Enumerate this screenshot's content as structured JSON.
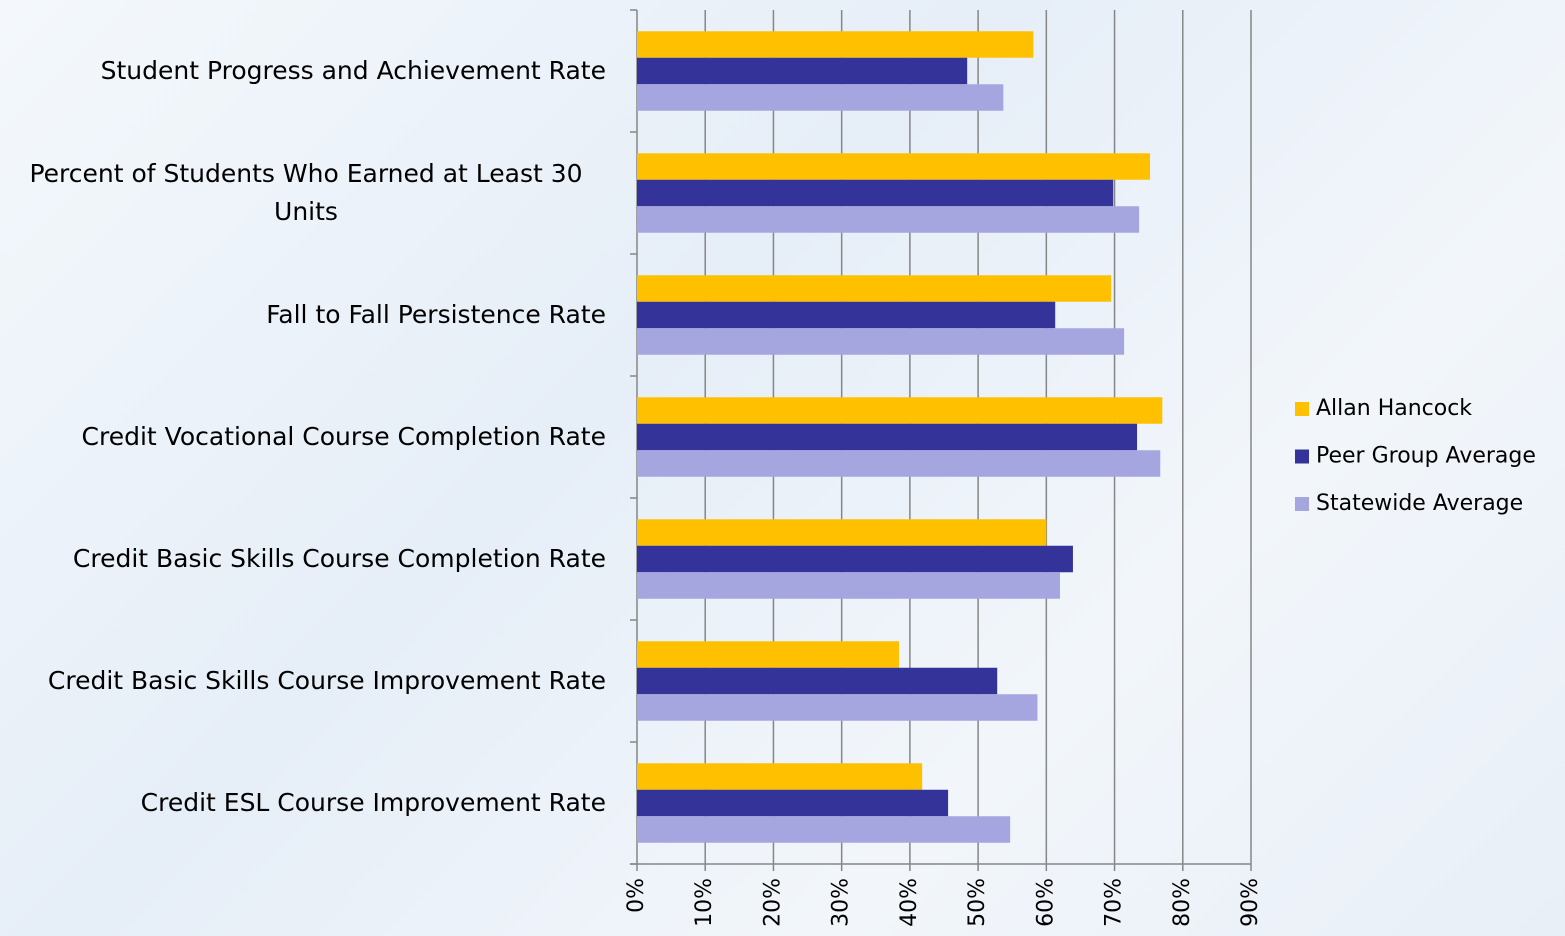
{
  "chart_data": {
    "type": "bar",
    "orientation": "horizontal",
    "categories": [
      "Student Progress and Achievement Rate",
      "Percent of Students Who Earned at Least 30 Units",
      "Fall to Fall Persistence Rate",
      "Credit Vocational Course Completion Rate",
      "Credit Basic Skills Course Completion Rate",
      "Credit Basic Skills Course Improvement Rate",
      "Credit ESL Course Improvement Rate"
    ],
    "series": [
      {
        "name": "Allan Hancock",
        "color": "#ffc000",
        "values": [
          58.1,
          75.2,
          69.5,
          77.0,
          60.0,
          38.4,
          41.8
        ]
      },
      {
        "name": "Peer Group Average",
        "color": "#333399",
        "values": [
          48.4,
          69.8,
          61.3,
          73.3,
          63.9,
          52.8,
          45.6
        ]
      },
      {
        "name": "Statewide Average",
        "color": "#a5a5e0",
        "values": [
          53.7,
          73.6,
          71.4,
          76.7,
          62.0,
          58.7,
          54.7
        ]
      }
    ],
    "xlim": [
      0,
      90
    ],
    "xticks": [
      {
        "value": 0,
        "label": "0%"
      },
      {
        "value": 10,
        "label": "10%"
      },
      {
        "value": 20,
        "label": "20%"
      },
      {
        "value": 30,
        "label": "30%"
      },
      {
        "value": 40,
        "label": "40%"
      },
      {
        "value": 50,
        "label": "50%"
      },
      {
        "value": 60,
        "label": "60%"
      },
      {
        "value": 70,
        "label": "70%"
      },
      {
        "value": 80,
        "label": "80%"
      },
      {
        "value": 90,
        "label": "90%"
      }
    ],
    "grid": true,
    "legend": "right"
  }
}
